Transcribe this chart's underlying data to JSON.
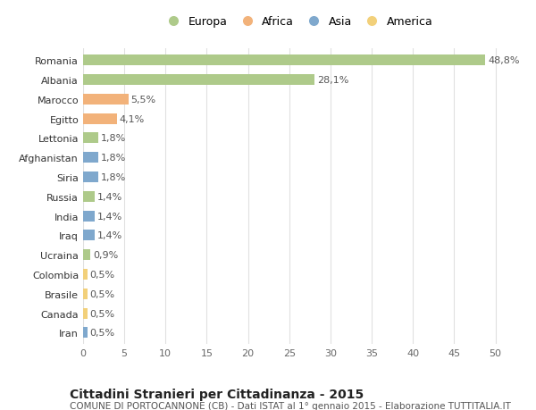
{
  "title": "Cittadini Stranieri per Cittadinanza - 2015",
  "subtitle": "COMUNE DI PORTOCANNONE (CB) - Dati ISTAT al 1° gennaio 2015 - Elaborazione TUTTITALIA.IT",
  "categories": [
    "Romania",
    "Albania",
    "Marocco",
    "Egitto",
    "Lettonia",
    "Afghanistan",
    "Siria",
    "Russia",
    "India",
    "Iraq",
    "Ucraina",
    "Colombia",
    "Brasile",
    "Canada",
    "Iran"
  ],
  "values": [
    48.8,
    28.1,
    5.5,
    4.1,
    1.8,
    1.8,
    1.8,
    1.4,
    1.4,
    1.4,
    0.9,
    0.5,
    0.5,
    0.5,
    0.5
  ],
  "labels": [
    "48,8%",
    "28,1%",
    "5,5%",
    "4,1%",
    "1,8%",
    "1,8%",
    "1,8%",
    "1,4%",
    "1,4%",
    "1,4%",
    "0,9%",
    "0,5%",
    "0,5%",
    "0,5%",
    "0,5%"
  ],
  "continents": [
    "Europa",
    "Europa",
    "Africa",
    "Africa",
    "Europa",
    "Asia",
    "Asia",
    "Europa",
    "Asia",
    "Asia",
    "Europa",
    "America",
    "America",
    "America",
    "Asia"
  ],
  "continent_colors": {
    "Europa": "#aeca8a",
    "Africa": "#f2b27a",
    "Asia": "#7fa8cd",
    "America": "#f2d07a"
  },
  "legend_order": [
    "Europa",
    "Africa",
    "Asia",
    "America"
  ],
  "xlim": [
    0,
    52
  ],
  "xticks": [
    0,
    5,
    10,
    15,
    20,
    25,
    30,
    35,
    40,
    45,
    50
  ],
  "background_color": "#ffffff",
  "grid_color": "#e0e0e0",
  "bar_height": 0.55,
  "title_fontsize": 10,
  "subtitle_fontsize": 7.5,
  "tick_fontsize": 8,
  "label_fontsize": 8,
  "legend_fontsize": 9
}
